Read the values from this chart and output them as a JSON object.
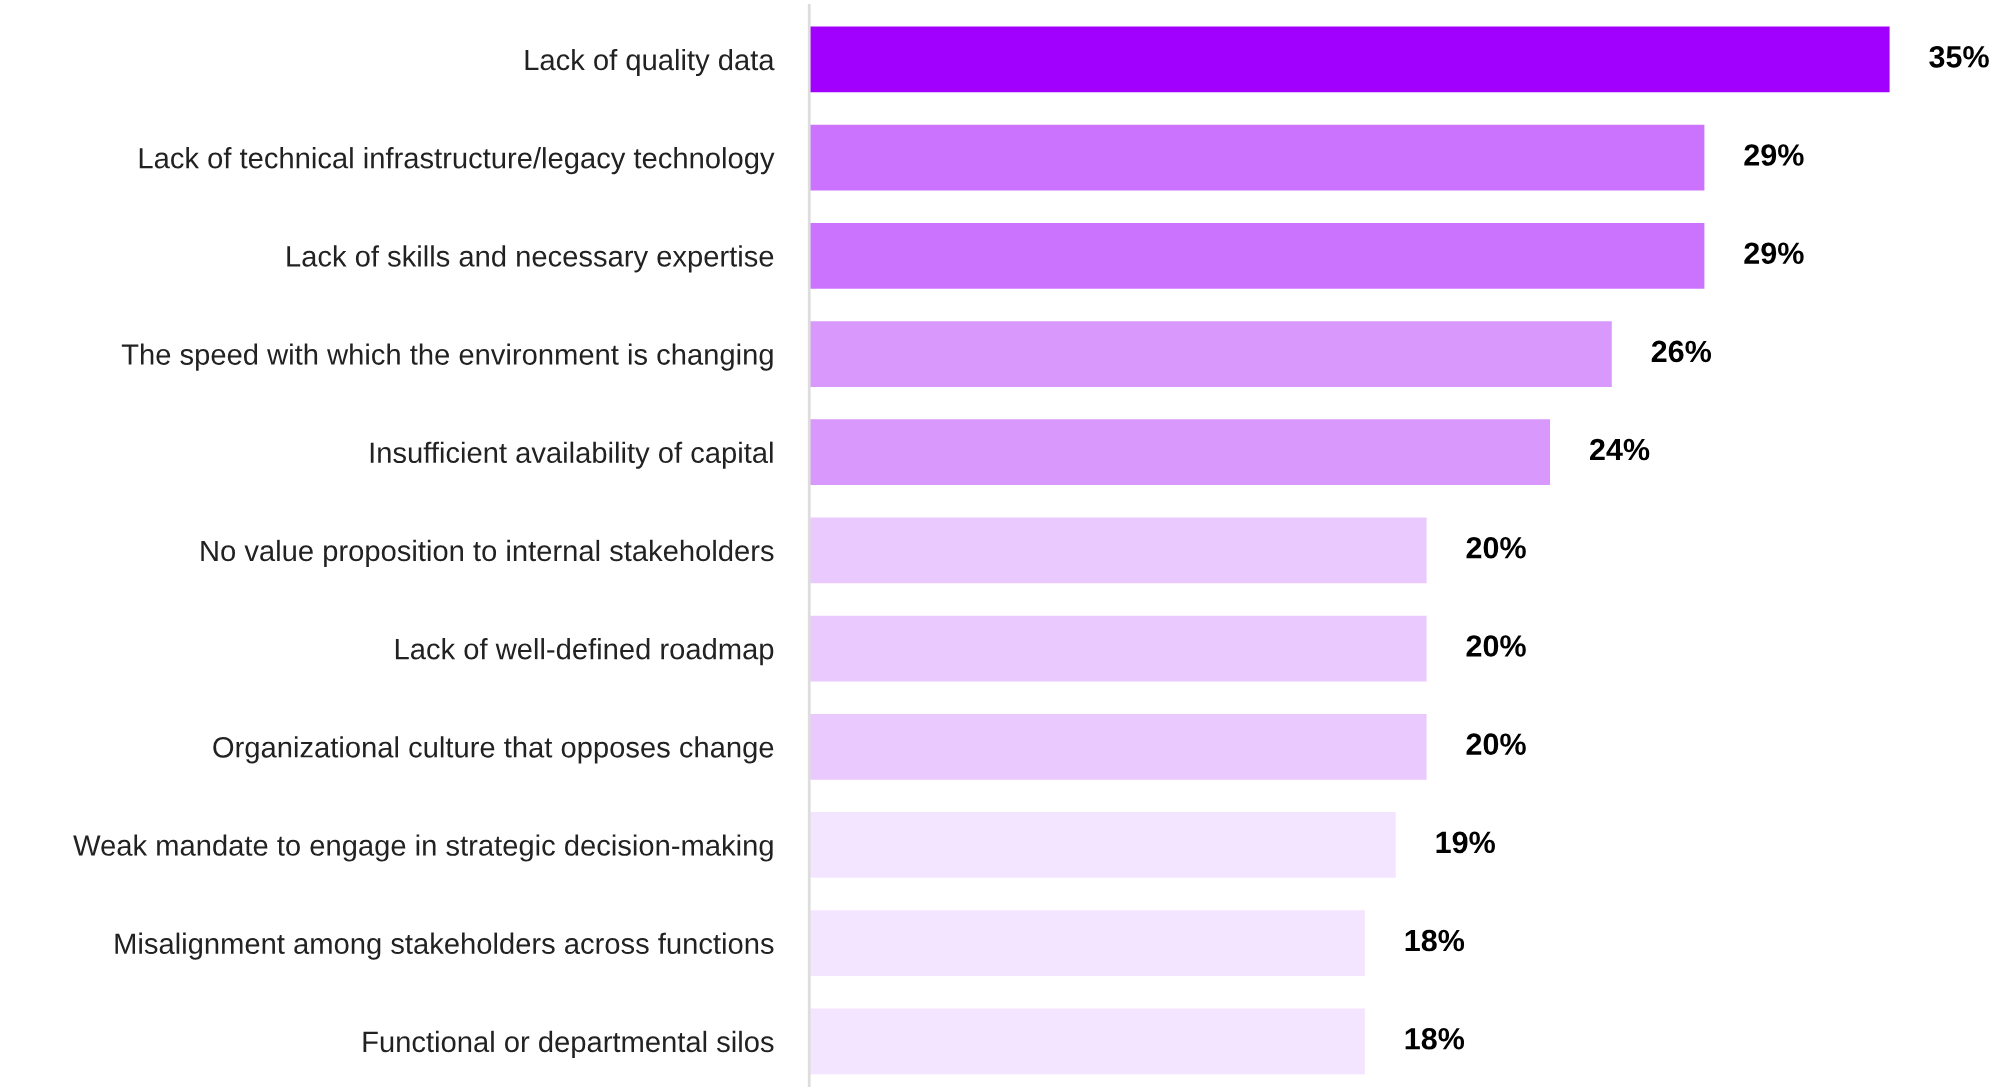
{
  "chart_data": {
    "type": "bar",
    "orientation": "horizontal",
    "data_labels": true,
    "value_labels": [
      "35%",
      "29%",
      "29%",
      "26%",
      "24%",
      "20%",
      "20%",
      "20%",
      "19%",
      "18%",
      "18%"
    ],
    "categories": [
      "Lack of quality data",
      "Lack of technical infrastructure/legacy technology",
      "Lack of skills and necessary expertise",
      "The speed with which the environment is changing",
      "Insufficient availability of capital",
      "No value proposition to internal stakeholders",
      "Lack of well-defined roadmap",
      "Organizational culture that opposes change",
      "Weak mandate to engage in strategic decision-making",
      "Misalignment among stakeholders across functions",
      "Functional or departmental silos"
    ],
    "values": [
      35,
      29,
      29,
      26,
      24,
      20,
      20,
      20,
      19,
      18,
      18
    ],
    "colors": [
      "#a100ff",
      "#cb73ff",
      "#cb73ff",
      "#d898fc",
      "#d898fc",
      "#eac9fe",
      "#eac9fe",
      "#eac9fe",
      "#f3e4ff",
      "#f3e4ff",
      "#f3e4ff"
    ],
    "grid": false,
    "legend": false
  }
}
